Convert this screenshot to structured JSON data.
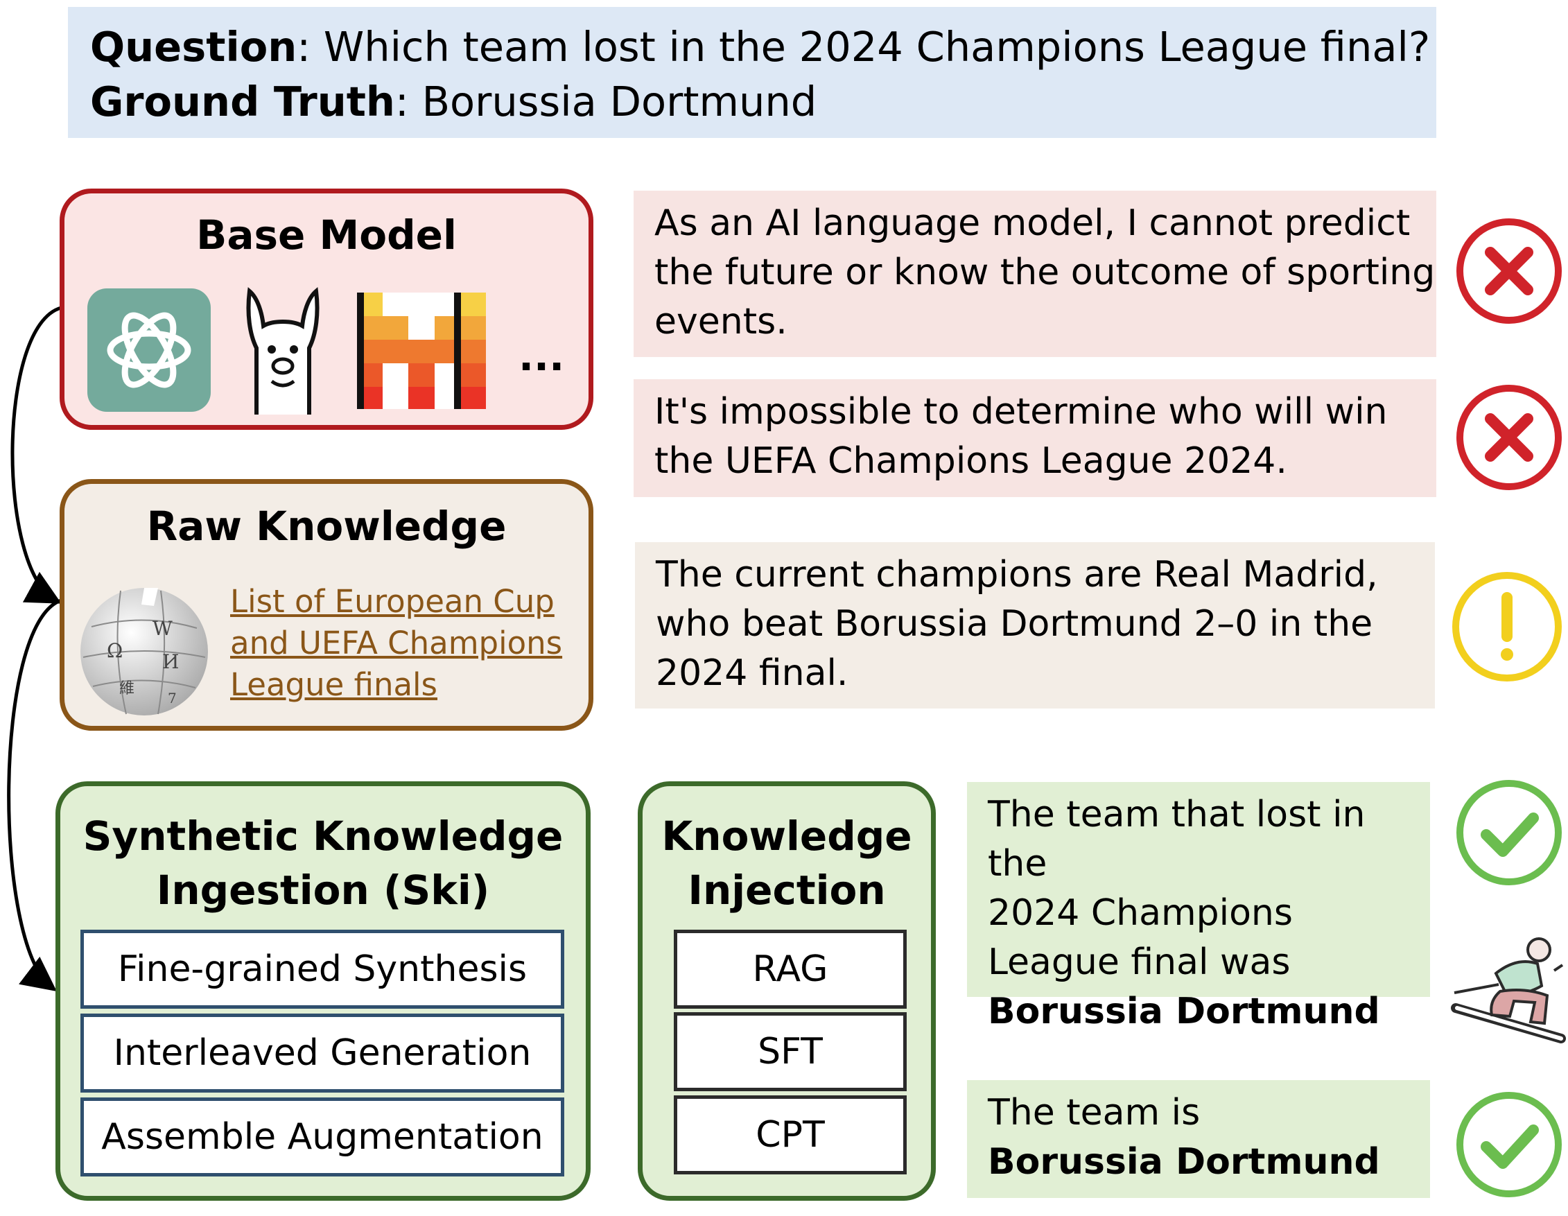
{
  "question": {
    "label": "Question",
    "text": "Which team lost in the 2024 Champions League final?",
    "truth_label": "Ground Truth",
    "truth_text": "Borussia Dortmund"
  },
  "base_model": {
    "title": "Base Model",
    "more": "..."
  },
  "raw_knowledge": {
    "title": "Raw Knowledge",
    "link_lines": [
      "List of European Cup",
      "and UEFA Champions",
      "League finals"
    ]
  },
  "ski": {
    "title_line1": "Synthetic Knowledge",
    "title_line2": "Ingestion (Ski)",
    "methods": [
      "Fine-grained Synthesis",
      "Interleaved Generation",
      "Assemble Augmentation"
    ]
  },
  "injection": {
    "title_line1": "Knowledge",
    "title_line2": "Injection",
    "items": [
      "RAG",
      "SFT",
      "CPT"
    ]
  },
  "answers": [
    {
      "lines": [
        "As an AI language model, I cannot predict",
        "the future or know the outcome of sporting",
        "events."
      ],
      "verdict": "wrong"
    },
    {
      "lines": [
        "It's impossible to determine who will win",
        "the UEFA Champions League 2024."
      ],
      "verdict": "wrong"
    },
    {
      "lines": [
        "The current champions are Real Madrid,",
        "who beat Borussia Dortmund 2–0 in the",
        "2024 final."
      ],
      "verdict": "partial"
    },
    {
      "lines": [
        "The team that lost in the",
        "2024 Champions",
        "League final was"
      ],
      "bold": "Borussia Dortmund",
      "verdict": "correct"
    },
    {
      "lines": [
        "The team is"
      ],
      "bold": "Borussia Dortmund",
      "verdict": "correct"
    }
  ],
  "colors": {
    "wrong": "#d0232a",
    "partial": "#f2cf1d",
    "correct": "#6bbd4f"
  }
}
